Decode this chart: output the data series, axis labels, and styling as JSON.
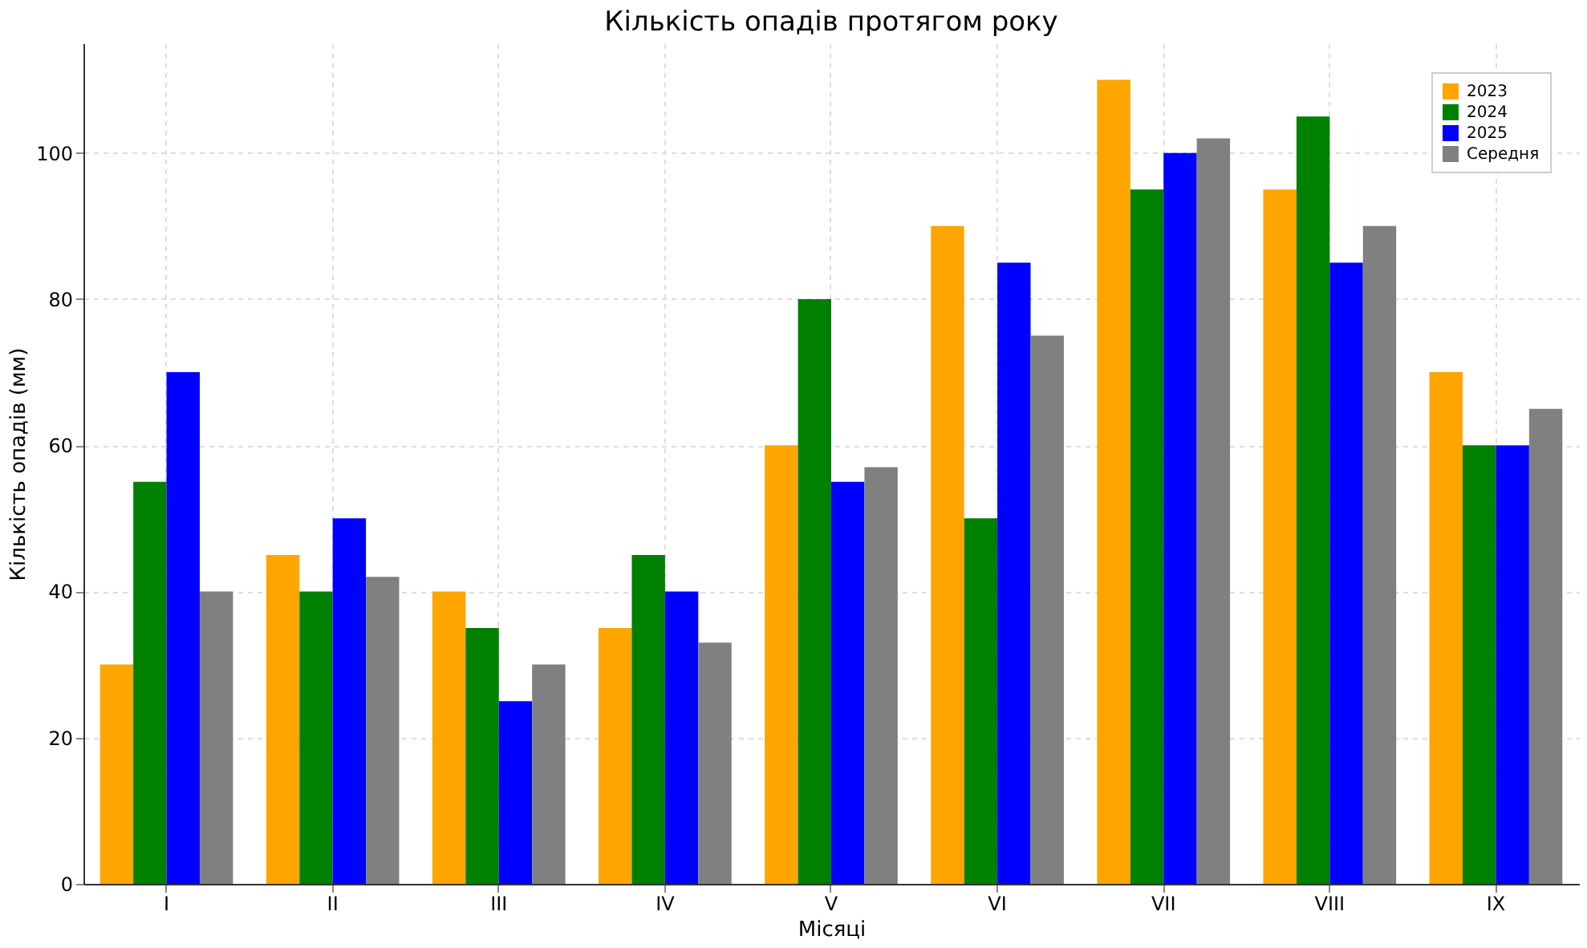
{
  "chart_data": {
    "type": "bar",
    "title": "Кількість опадів протягом року",
    "xlabel": "Місяці",
    "ylabel": "Кількість опадів (мм)",
    "categories": [
      "I",
      "II",
      "III",
      "IV",
      "V",
      "VI",
      "VII",
      "VIII",
      "IX"
    ],
    "series": [
      {
        "name": "2023",
        "color": "#ffa500",
        "values": [
          30,
          45,
          40,
          35,
          60,
          90,
          110,
          95,
          70
        ]
      },
      {
        "name": "2024",
        "color": "#008000",
        "values": [
          55,
          40,
          35,
          45,
          80,
          50,
          95,
          105,
          60
        ]
      },
      {
        "name": "2025",
        "color": "#0000ff",
        "values": [
          70,
          50,
          25,
          40,
          55,
          85,
          100,
          85,
          60
        ]
      },
      {
        "name": "Середня",
        "color": "#808080",
        "values": [
          40,
          42,
          30,
          33,
          57,
          75,
          102,
          90,
          65
        ]
      }
    ],
    "ylim": [
      0,
      115
    ],
    "yticks": [
      0,
      20,
      40,
      60,
      80,
      100
    ],
    "grid": true,
    "legend": "top right"
  }
}
